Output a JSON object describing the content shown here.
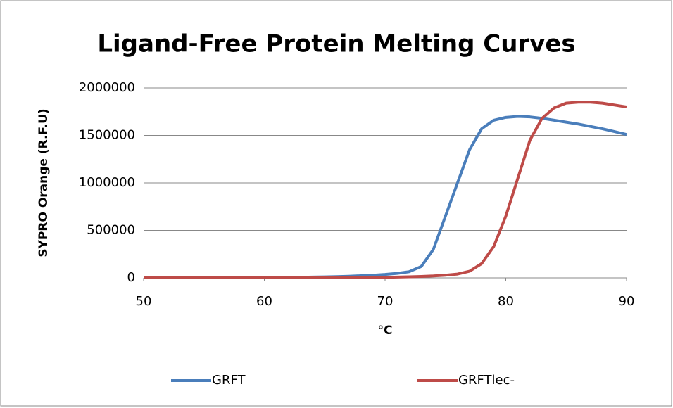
{
  "chart_data": {
    "type": "line",
    "title": "Ligand-Free Protein Melting Curves",
    "y_label": "SYPRO Orange (R.F.U)",
    "x_label": "°C",
    "x": [
      50,
      51,
      52,
      53,
      54,
      55,
      56,
      57,
      58,
      59,
      60,
      61,
      62,
      63,
      64,
      65,
      66,
      67,
      68,
      69,
      70,
      71,
      72,
      73,
      74,
      75,
      76,
      77,
      78,
      79,
      80,
      81,
      82,
      83,
      84,
      85,
      86,
      87,
      88,
      89,
      90
    ],
    "series": [
      {
        "name": "GRFT",
        "color": "#4a7ebb",
        "values": [
          0,
          0,
          0,
          0,
          0,
          1000,
          1000,
          2000,
          2000,
          3000,
          3000,
          4000,
          5000,
          6000,
          8000,
          10000,
          13000,
          17000,
          22000,
          28000,
          36000,
          47000,
          65000,
          120000,
          300000,
          650000,
          1000000,
          1350000,
          1570000,
          1660000,
          1690000,
          1700000,
          1695000,
          1680000,
          1660000,
          1640000,
          1620000,
          1595000,
          1570000,
          1540000,
          1510000
        ]
      },
      {
        "name": "GRFTlec-",
        "color": "#be4b48",
        "values": [
          0,
          0,
          0,
          0,
          0,
          0,
          0,
          0,
          0,
          0,
          0,
          1000,
          1000,
          1000,
          2000,
          2000,
          3000,
          3000,
          4000,
          5000,
          6000,
          8000,
          11000,
          15000,
          20000,
          28000,
          40000,
          70000,
          150000,
          330000,
          650000,
          1050000,
          1450000,
          1680000,
          1790000,
          1840000,
          1850000,
          1850000,
          1840000,
          1820000,
          1800000
        ]
      }
    ],
    "xlim": [
      50,
      90
    ],
    "xticks": [
      50,
      60,
      70,
      80,
      90
    ],
    "ylim": [
      0,
      2000000
    ],
    "yticks": [
      0,
      500000,
      1000000,
      1500000,
      2000000
    ],
    "grid": true,
    "legend": "bottom"
  }
}
